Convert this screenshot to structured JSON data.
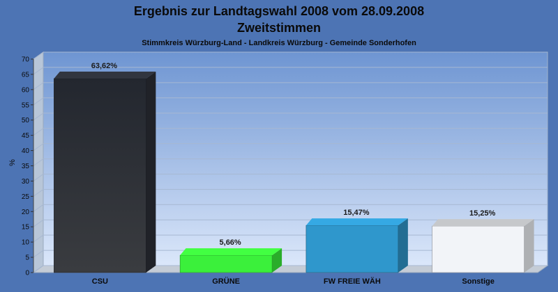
{
  "chart_data": {
    "type": "bar",
    "title": "Ergebnis zur Landtagswahl 2008 vom 28.09.2008",
    "subtitle": "Zweitstimmen",
    "subsubtitle": "Stimmkreis Würzburg-Land - Landkreis Würzburg - Gemeinde Sonderhofen",
    "ylabel": "%",
    "xlabel": "",
    "ylim": [
      0,
      70
    ],
    "yticks": [
      0,
      5,
      10,
      15,
      20,
      25,
      30,
      35,
      40,
      45,
      50,
      55,
      60,
      65,
      70
    ],
    "grid": true,
    "categories": [
      "CSU",
      "GRÜNE",
      "FW FREIE WÄH",
      "Sonstige"
    ],
    "values": [
      63.62,
      5.66,
      15.47,
      15.25
    ],
    "value_labels": [
      "63,62%",
      "5,66%",
      "15,47%",
      "15,25%"
    ],
    "colors": [
      "#2c2f38",
      "#3bf03b",
      "#2f97cc",
      "#f2f4f8"
    ]
  }
}
